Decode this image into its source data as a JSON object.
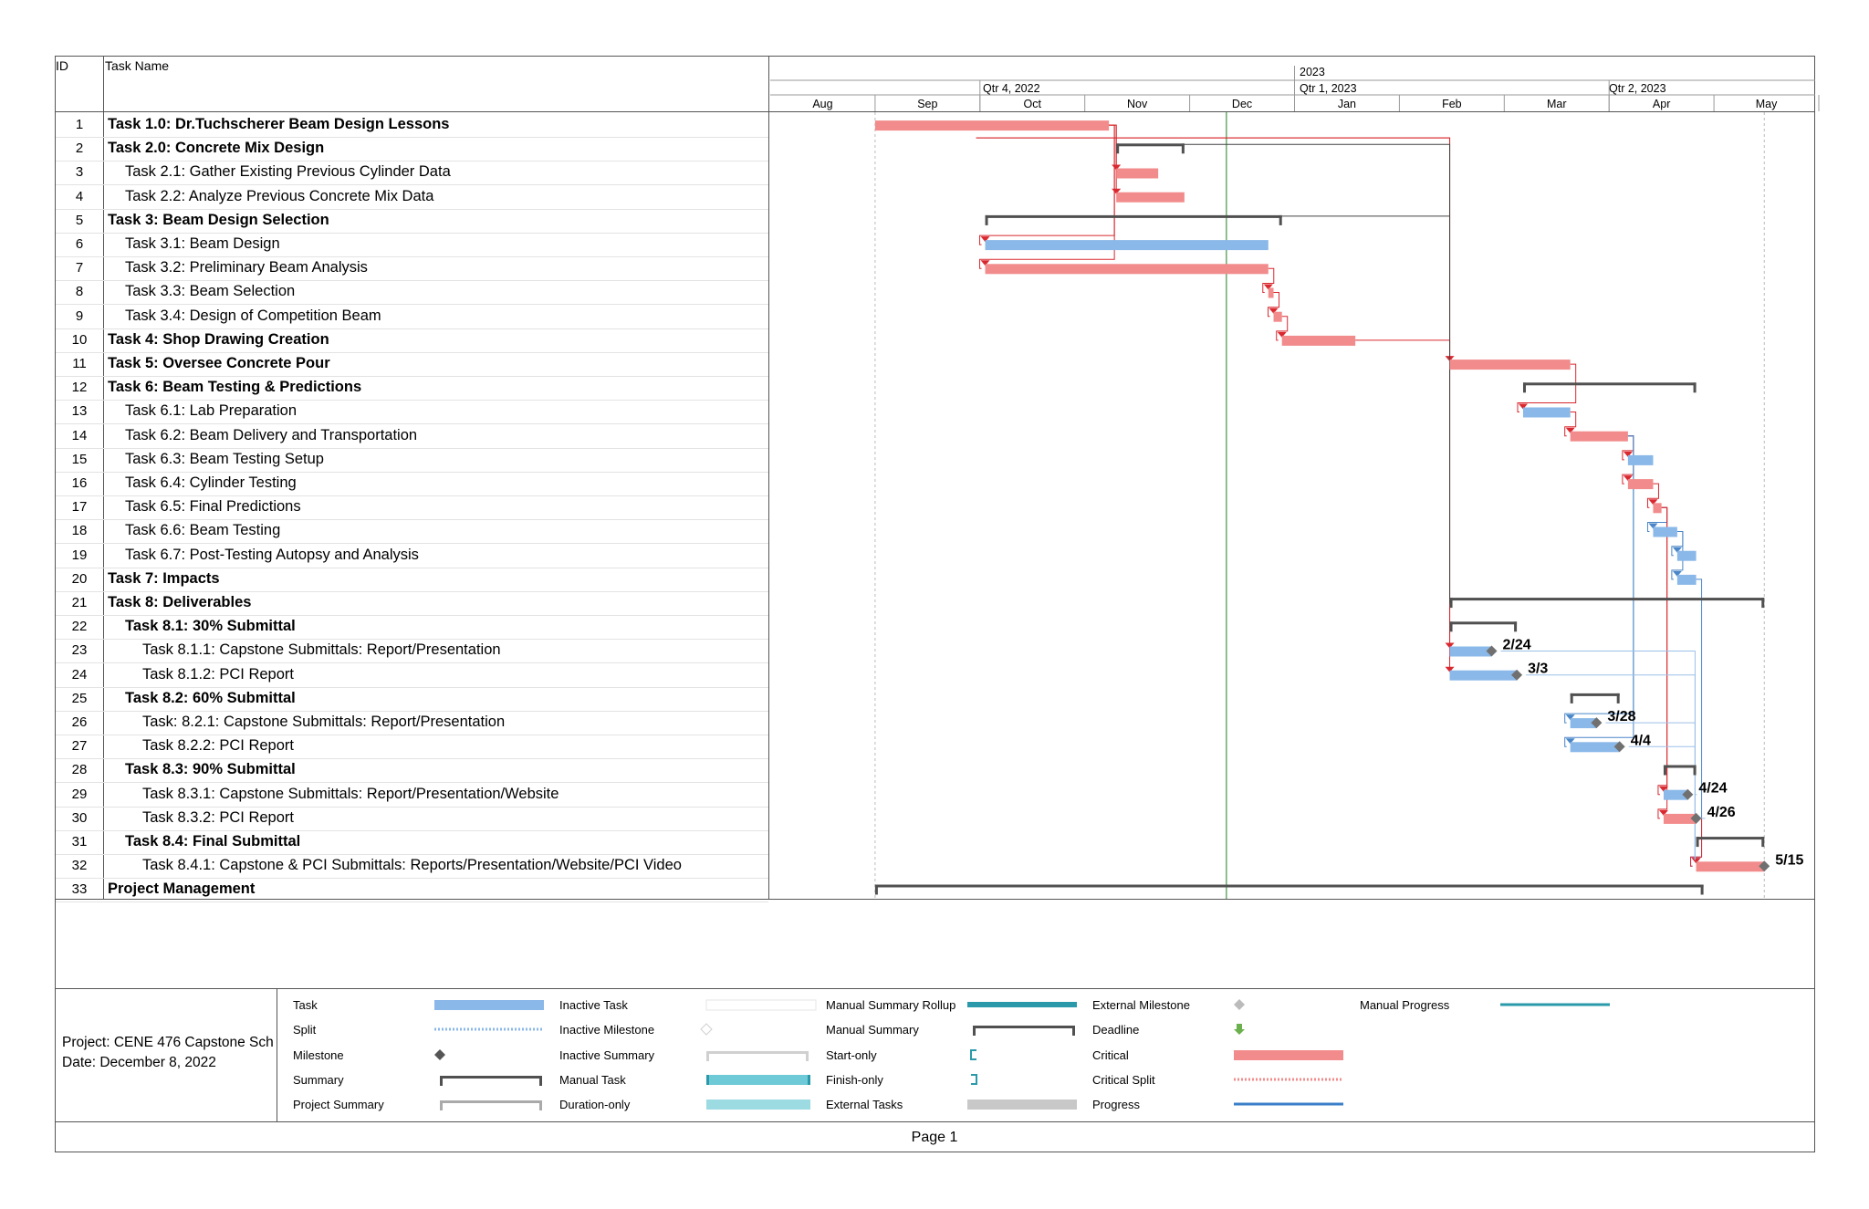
{
  "table": {
    "id_header": "ID",
    "name_header": "Task Name",
    "rows": [
      {
        "id": "1",
        "name": "Task 1.0: Dr.Tuchscherer Beam Design Lessons",
        "summary": true,
        "level": 0
      },
      {
        "id": "2",
        "name": "Task 2.0: Concrete Mix Design",
        "summary": true,
        "level": 0
      },
      {
        "id": "3",
        "name": "Task 2.1: Gather Existing Previous Cylinder Data",
        "summary": false,
        "level": 1
      },
      {
        "id": "4",
        "name": "Task 2.2: Analyze Previous Concrete Mix Data",
        "summary": false,
        "level": 1
      },
      {
        "id": "5",
        "name": "Task 3: Beam Design Selection",
        "summary": true,
        "level": 0
      },
      {
        "id": "6",
        "name": "Task 3.1: Beam Design",
        "summary": false,
        "level": 1
      },
      {
        "id": "7",
        "name": "Task 3.2: Preliminary Beam Analysis",
        "summary": false,
        "level": 1
      },
      {
        "id": "8",
        "name": "Task 3.3: Beam Selection",
        "summary": false,
        "level": 1
      },
      {
        "id": "9",
        "name": "Task 3.4: Design of Competition Beam",
        "summary": false,
        "level": 1
      },
      {
        "id": "10",
        "name": "Task 4: Shop Drawing Creation",
        "summary": true,
        "level": 0
      },
      {
        "id": "11",
        "name": "Task 5: Oversee Concrete Pour",
        "summary": true,
        "level": 0
      },
      {
        "id": "12",
        "name": "Task 6: Beam Testing & Predictions",
        "summary": true,
        "level": 0
      },
      {
        "id": "13",
        "name": "Task 6.1: Lab Preparation",
        "summary": false,
        "level": 1
      },
      {
        "id": "14",
        "name": "Task 6.2: Beam Delivery and Transportation",
        "summary": false,
        "level": 1
      },
      {
        "id": "15",
        "name": "Task 6.3: Beam Testing Setup",
        "summary": false,
        "level": 1
      },
      {
        "id": "16",
        "name": "Task 6.4: Cylinder Testing",
        "summary": false,
        "level": 1
      },
      {
        "id": "17",
        "name": "Task 6.5: Final Predictions",
        "summary": false,
        "level": 1
      },
      {
        "id": "18",
        "name": "Task 6.6: Beam Testing",
        "summary": false,
        "level": 1
      },
      {
        "id": "19",
        "name": "Task 6.7: Post-Testing Autopsy and Analysis",
        "summary": false,
        "level": 1
      },
      {
        "id": "20",
        "name": "Task 7: Impacts",
        "summary": true,
        "level": 0
      },
      {
        "id": "21",
        "name": "Task 8: Deliverables",
        "summary": true,
        "level": 0
      },
      {
        "id": "22",
        "name": "Task 8.1: 30% Submittal",
        "summary": true,
        "level": 1
      },
      {
        "id": "23",
        "name": "Task 8.1.1: Capstone Submittals: Report/Presentation",
        "summary": false,
        "level": 2
      },
      {
        "id": "24",
        "name": "Task 8.1.2: PCI Report",
        "summary": false,
        "level": 2
      },
      {
        "id": "25",
        "name": "Task 8.2: 60% Submittal",
        "summary": true,
        "level": 1
      },
      {
        "id": "26",
        "name": "Task: 8.2.1: Capstone Submittals: Report/Presentation",
        "summary": false,
        "level": 2
      },
      {
        "id": "27",
        "name": "Task 8.2.2: PCI Report",
        "summary": false,
        "level": 2
      },
      {
        "id": "28",
        "name": "Task 8.3: 90% Submittal",
        "summary": true,
        "level": 1
      },
      {
        "id": "29",
        "name": "Task 8.3.1: Capstone Submittals: Report/Presentation/Website",
        "summary": false,
        "level": 2
      },
      {
        "id": "30",
        "name": "Task 8.3.2: PCI Report",
        "summary": false,
        "level": 2
      },
      {
        "id": "31",
        "name": "Task 8.4: Final Submittal",
        "summary": true,
        "level": 1
      },
      {
        "id": "32",
        "name": "Task 8.4.1: Capstone & PCI Submittals: Reports/Presentation/Website/PCI Video",
        "summary": false,
        "level": 2
      },
      {
        "id": "33",
        "name": "Project Management",
        "summary": true,
        "level": 0
      }
    ]
  },
  "timescale": {
    "year": "2023",
    "quarters": [
      "Qtr 4, 2022",
      "Qtr 1, 2023",
      "Qtr 2, 2023"
    ],
    "months": [
      "Aug",
      "Sep",
      "Oct",
      "Nov",
      "Dec",
      "Jan",
      "Feb",
      "Mar",
      "Apr",
      "May"
    ]
  },
  "gantt": {
    "colors": {
      "task": "#8ab8e8",
      "critical": "#f28b8b",
      "summary": "#505050",
      "milestone": "#707070",
      "status_line": "#6aa86a",
      "link_blue": "#4a86c8",
      "link_red": "#d9282f",
      "link_dark": "#444444"
    },
    "bars": [
      {
        "row": 1,
        "kind": "critical",
        "start_month": 1.0,
        "end_month": 3.23
      },
      {
        "row": 2,
        "kind": "summary",
        "start_month": 3.3,
        "end_month": 3.95
      },
      {
        "row": 3,
        "kind": "critical",
        "start_month": 3.3,
        "end_month": 3.7
      },
      {
        "row": 4,
        "kind": "critical",
        "start_month": 3.3,
        "end_month": 3.95
      },
      {
        "row": 5,
        "kind": "summary",
        "start_month": 2.05,
        "end_month": 4.88
      },
      {
        "row": 6,
        "kind": "task",
        "start_month": 2.05,
        "end_month": 4.75
      },
      {
        "row": 7,
        "kind": "critical",
        "start_month": 2.05,
        "end_month": 4.75
      },
      {
        "row": 8,
        "kind": "critical",
        "start_month": 4.75,
        "end_month": 4.8
      },
      {
        "row": 9,
        "kind": "critical",
        "start_month": 4.8,
        "end_month": 4.88
      },
      {
        "row": 10,
        "kind": "critical",
        "start_month": 4.88,
        "end_month": 5.58
      },
      {
        "row": 11,
        "kind": "critical",
        "start_month": 6.48,
        "end_month": 7.63
      },
      {
        "row": 12,
        "kind": "summary",
        "start_month": 7.18,
        "end_month": 8.83
      },
      {
        "row": 13,
        "kind": "task",
        "start_month": 7.18,
        "end_month": 7.63
      },
      {
        "row": 14,
        "kind": "critical",
        "start_month": 7.63,
        "end_month": 8.18
      },
      {
        "row": 15,
        "kind": "task",
        "start_month": 8.18,
        "end_month": 8.42
      },
      {
        "row": 16,
        "kind": "critical",
        "start_month": 8.18,
        "end_month": 8.42
      },
      {
        "row": 17,
        "kind": "critical",
        "start_month": 8.42,
        "end_month": 8.5
      },
      {
        "row": 18,
        "kind": "task",
        "start_month": 8.42,
        "end_month": 8.65
      },
      {
        "row": 19,
        "kind": "task",
        "start_month": 8.65,
        "end_month": 8.83
      },
      {
        "row": 20,
        "kind": "task",
        "start_month": 8.65,
        "end_month": 8.83
      },
      {
        "row": 21,
        "kind": "summary",
        "start_month": 6.48,
        "end_month": 9.48
      },
      {
        "row": 22,
        "kind": "summary",
        "start_month": 6.48,
        "end_month": 7.12
      },
      {
        "row": 23,
        "kind": "task",
        "start_month": 6.48,
        "end_month": 6.88
      },
      {
        "row": 24,
        "kind": "task",
        "start_month": 6.48,
        "end_month": 7.12
      },
      {
        "row": 25,
        "kind": "summary",
        "start_month": 7.63,
        "end_month": 8.1
      },
      {
        "row": 26,
        "kind": "task",
        "start_month": 7.63,
        "end_month": 7.88
      },
      {
        "row": 27,
        "kind": "task",
        "start_month": 7.63,
        "end_month": 8.1
      },
      {
        "row": 28,
        "kind": "summary",
        "start_month": 8.52,
        "end_month": 8.83
      },
      {
        "row": 29,
        "kind": "task",
        "start_month": 8.52,
        "end_month": 8.75
      },
      {
        "row": 30,
        "kind": "critical",
        "start_month": 8.52,
        "end_month": 8.83
      },
      {
        "row": 31,
        "kind": "summary",
        "start_month": 8.83,
        "end_month": 9.48
      },
      {
        "row": 32,
        "kind": "critical",
        "start_month": 8.83,
        "end_month": 9.48
      },
      {
        "row": 33,
        "kind": "summary",
        "start_month": 1.0,
        "end_month": 8.9
      }
    ],
    "milestones": [
      {
        "row": 23,
        "month": 6.88,
        "label": "2/24"
      },
      {
        "row": 24,
        "month": 7.12,
        "label": "3/3"
      },
      {
        "row": 26,
        "month": 7.88,
        "label": "3/28"
      },
      {
        "row": 27,
        "month": 8.1,
        "label": "4/4"
      },
      {
        "row": 29,
        "month": 8.75,
        "label": "4/24"
      },
      {
        "row": 30,
        "month": 8.83,
        "label": "4/26"
      },
      {
        "row": 32,
        "month": 9.48,
        "label": "5/15"
      }
    ],
    "status_line_month": 4.35
  },
  "legend": {
    "items": [
      {
        "label": "Task",
        "symbol": "task"
      },
      {
        "label": "Split",
        "symbol": "split"
      },
      {
        "label": "Milestone",
        "symbol": "milestone"
      },
      {
        "label": "Summary",
        "symbol": "summary"
      },
      {
        "label": "Project Summary",
        "symbol": "project-summary"
      },
      {
        "label": "Inactive Task",
        "symbol": "inactive-task"
      },
      {
        "label": "Inactive Milestone",
        "symbol": "inactive-milestone"
      },
      {
        "label": "Inactive Summary",
        "symbol": "inactive-summary"
      },
      {
        "label": "Manual Task",
        "symbol": "manual-task"
      },
      {
        "label": "Duration-only",
        "symbol": "duration-only"
      },
      {
        "label": "Manual Summary Rollup",
        "symbol": "manual-summary-rollup"
      },
      {
        "label": "Manual Summary",
        "symbol": "manual-summary"
      },
      {
        "label": "Start-only",
        "symbol": "start-only"
      },
      {
        "label": "Finish-only",
        "symbol": "finish-only"
      },
      {
        "label": "External Tasks",
        "symbol": "external-tasks"
      },
      {
        "label": "External Milestone",
        "symbol": "external-milestone"
      },
      {
        "label": "Deadline",
        "symbol": "deadline"
      },
      {
        "label": "Critical",
        "symbol": "critical"
      },
      {
        "label": "Critical Split",
        "symbol": "critical-split"
      },
      {
        "label": "Progress",
        "symbol": "progress"
      },
      {
        "label": "Manual Progress",
        "symbol": "manual-progress"
      }
    ]
  },
  "footer": {
    "project": "Project: CENE 476 Capstone Sch",
    "date": "Date: December 8, 2022",
    "page": "Page 1"
  }
}
